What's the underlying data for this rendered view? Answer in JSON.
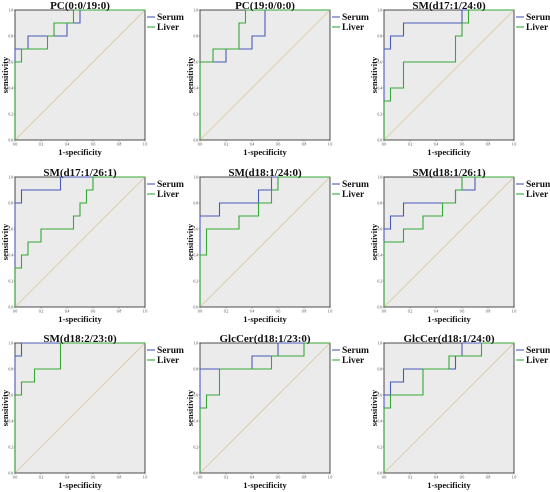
{
  "chart_data": [
    {
      "type": "line",
      "title": "PC(0:0/19:0)",
      "xlabel": "1-specificity",
      "ylabel": "sensitivity",
      "xlim": [
        0,
        1
      ],
      "ylim": [
        0,
        1
      ],
      "tick_labels": [
        "0.0",
        "0.2",
        "0.4",
        "0.6",
        "0.8",
        "1.0"
      ],
      "grid": false,
      "legend_placement": "top-right",
      "reference_line": "diagonal",
      "series": [
        {
          "name": "Serum",
          "color": "#4a5ab8",
          "x": [
            0,
            0,
            0.1,
            0.1,
            0.4,
            0.4,
            0.5,
            0.5,
            0.6,
            0.6,
            1.0
          ],
          "y": [
            0,
            0.7,
            0.7,
            0.8,
            0.8,
            0.9,
            0.9,
            1.0,
            1.0,
            1.0,
            1.0
          ]
        },
        {
          "name": "Liver",
          "color": "#35a835",
          "x": [
            0,
            0,
            0.05,
            0.05,
            0.25,
            0.25,
            0.3,
            0.3,
            0.45,
            0.45,
            1.0
          ],
          "y": [
            0,
            0.6,
            0.6,
            0.7,
            0.7,
            0.8,
            0.8,
            0.9,
            0.9,
            1.0,
            1.0
          ]
        }
      ]
    },
    {
      "type": "line",
      "title": "PC(19:0/0:0)",
      "xlabel": "1-specificity",
      "ylabel": "sensitivity",
      "xlim": [
        0,
        1
      ],
      "ylim": [
        0,
        1
      ],
      "tick_labels": [
        "0.0",
        "0.2",
        "0.4",
        "0.6",
        "0.8",
        "1.0"
      ],
      "grid": false,
      "legend_placement": "top-right",
      "reference_line": "diagonal",
      "series": [
        {
          "name": "Serum",
          "color": "#4a5ab8",
          "x": [
            0,
            0,
            0.2,
            0.2,
            0.4,
            0.4,
            0.5,
            0.5,
            1.0
          ],
          "y": [
            0,
            0.6,
            0.6,
            0.7,
            0.7,
            0.8,
            0.8,
            1.0,
            1.0
          ]
        },
        {
          "name": "Liver",
          "color": "#35a835",
          "x": [
            0,
            0,
            0.1,
            0.1,
            0.3,
            0.3,
            0.35,
            0.35,
            1.0
          ],
          "y": [
            0,
            0.6,
            0.6,
            0.7,
            0.7,
            0.9,
            0.9,
            1.0,
            1.0
          ]
        }
      ]
    },
    {
      "type": "line",
      "title": "SM(d17:1/24:0)",
      "xlabel": "1-specificity",
      "ylabel": "sensitivity",
      "xlim": [
        0,
        1
      ],
      "ylim": [
        0,
        1
      ],
      "tick_labels": [
        "0.0",
        "0.2",
        "0.4",
        "0.6",
        "0.8",
        "1.0"
      ],
      "grid": false,
      "legend_placement": "top-right",
      "reference_line": "diagonal",
      "series": [
        {
          "name": "Serum",
          "color": "#4a5ab8",
          "x": [
            0,
            0,
            0.05,
            0.05,
            0.15,
            0.15,
            0.6,
            0.6,
            1.0
          ],
          "y": [
            0,
            0.7,
            0.7,
            0.8,
            0.8,
            0.9,
            0.9,
            1.0,
            1.0
          ]
        },
        {
          "name": "Liver",
          "color": "#35a835",
          "x": [
            0,
            0,
            0.05,
            0.05,
            0.15,
            0.15,
            0.55,
            0.55,
            0.6,
            0.6,
            0.65,
            0.65,
            1.0
          ],
          "y": [
            0,
            0.3,
            0.3,
            0.4,
            0.4,
            0.6,
            0.6,
            0.8,
            0.8,
            0.9,
            0.9,
            1.0,
            1.0
          ]
        }
      ]
    },
    {
      "type": "line",
      "title": "SM(d17:1/26:1)",
      "xlabel": "1-specificity",
      "ylabel": "sensitivity",
      "xlim": [
        0,
        1
      ],
      "ylim": [
        0,
        1
      ],
      "tick_labels": [
        "0.0",
        "0.2",
        "0.4",
        "0.6",
        "0.8",
        "1.0"
      ],
      "grid": false,
      "legend_placement": "top-right",
      "reference_line": "diagonal",
      "series": [
        {
          "name": "Serum",
          "color": "#4a5ab8",
          "x": [
            0,
            0,
            0.05,
            0.05,
            0.35,
            0.35,
            1.0
          ],
          "y": [
            0,
            0.8,
            0.8,
            0.9,
            0.9,
            1.0,
            1.0
          ]
        },
        {
          "name": "Liver",
          "color": "#35a835",
          "x": [
            0,
            0,
            0.05,
            0.05,
            0.1,
            0.1,
            0.2,
            0.2,
            0.45,
            0.45,
            0.5,
            0.5,
            0.55,
            0.55,
            0.6,
            0.6,
            1.0
          ],
          "y": [
            0,
            0.3,
            0.3,
            0.4,
            0.4,
            0.5,
            0.5,
            0.6,
            0.6,
            0.7,
            0.7,
            0.8,
            0.8,
            0.9,
            0.9,
            1.0,
            1.0
          ]
        }
      ]
    },
    {
      "type": "line",
      "title": "SM(d18:1/24:0)",
      "xlabel": "1-specificity",
      "ylabel": "sensitivity",
      "xlim": [
        0,
        1
      ],
      "ylim": [
        0,
        1
      ],
      "tick_labels": [
        "0.0",
        "0.2",
        "0.4",
        "0.6",
        "0.8",
        "1.0"
      ],
      "grid": false,
      "legend_placement": "top-right",
      "reference_line": "diagonal",
      "series": [
        {
          "name": "Serum",
          "color": "#4a5ab8",
          "x": [
            0,
            0,
            0.15,
            0.15,
            0.45,
            0.45,
            0.55,
            0.55,
            1.0
          ],
          "y": [
            0,
            0.7,
            0.7,
            0.8,
            0.8,
            0.9,
            0.9,
            1.0,
            1.0
          ]
        },
        {
          "name": "Liver",
          "color": "#35a835",
          "x": [
            0,
            0,
            0.05,
            0.05,
            0.3,
            0.3,
            0.45,
            0.45,
            0.55,
            0.55,
            0.6,
            0.6,
            0.7,
            0.7,
            1.0
          ],
          "y": [
            0,
            0.4,
            0.4,
            0.6,
            0.6,
            0.7,
            0.7,
            0.8,
            0.8,
            0.9,
            0.9,
            1.0,
            1.0,
            1.0,
            1.0
          ]
        }
      ]
    },
    {
      "type": "line",
      "title": "SM(d18:1/26:1)",
      "xlabel": "1-specificity",
      "ylabel": "sensitivity",
      "xlim": [
        0,
        1
      ],
      "ylim": [
        0,
        1
      ],
      "tick_labels": [
        "0.0",
        "0.2",
        "0.4",
        "0.6",
        "0.8",
        "1.0"
      ],
      "grid": false,
      "legend_placement": "top-right",
      "reference_line": "diagonal",
      "series": [
        {
          "name": "Serum",
          "color": "#4a5ab8",
          "x": [
            0,
            0,
            0.05,
            0.05,
            0.15,
            0.15,
            0.55,
            0.55,
            0.7,
            0.7,
            1.0
          ],
          "y": [
            0,
            0.6,
            0.6,
            0.7,
            0.7,
            0.8,
            0.8,
            0.9,
            0.9,
            1.0,
            1.0
          ]
        },
        {
          "name": "Liver",
          "color": "#35a835",
          "x": [
            0,
            0,
            0.15,
            0.15,
            0.3,
            0.3,
            0.45,
            0.45,
            0.55,
            0.55,
            0.6,
            0.6,
            0.75,
            0.75,
            1.0
          ],
          "y": [
            0,
            0.5,
            0.5,
            0.6,
            0.6,
            0.7,
            0.7,
            0.8,
            0.8,
            0.9,
            0.9,
            1.0,
            1.0,
            1.0,
            1.0
          ]
        }
      ]
    },
    {
      "type": "line",
      "title": "SM(d18:2/23:0)",
      "xlabel": "1-specificity",
      "ylabel": "sensitivity",
      "xlim": [
        0,
        1
      ],
      "ylim": [
        0,
        1
      ],
      "tick_labels": [
        "0.0",
        "0.2",
        "0.4",
        "0.6",
        "0.8",
        "1.0"
      ],
      "grid": false,
      "legend_placement": "top-right",
      "reference_line": "diagonal",
      "series": [
        {
          "name": "Serum",
          "color": "#4a5ab8",
          "x": [
            0,
            0,
            0.05,
            0.05,
            1.0
          ],
          "y": [
            0,
            0.9,
            0.9,
            1.0,
            1.0
          ]
        },
        {
          "name": "Liver",
          "color": "#35a835",
          "x": [
            0,
            0,
            0.05,
            0.05,
            0.15,
            0.15,
            0.35,
            0.35,
            1.0
          ],
          "y": [
            0,
            0.6,
            0.6,
            0.7,
            0.7,
            0.8,
            0.8,
            1.0,
            1.0
          ]
        }
      ]
    },
    {
      "type": "line",
      "title": "GlcCer(d18:1/23:0)",
      "xlabel": "1-specificity",
      "ylabel": "sensitivity",
      "xlim": [
        0,
        1
      ],
      "ylim": [
        0,
        1
      ],
      "tick_labels": [
        "0.0",
        "0.2",
        "0.4",
        "0.6",
        "0.8",
        "1.0"
      ],
      "grid": false,
      "legend_placement": "top-right",
      "reference_line": "diagonal",
      "series": [
        {
          "name": "Serum",
          "color": "#4a5ab8",
          "x": [
            0,
            0,
            0.1,
            0.1,
            0.4,
            0.4,
            0.6,
            0.6,
            0.8,
            0.8,
            1.0
          ],
          "y": [
            0,
            0.8,
            0.8,
            0.8,
            0.8,
            0.9,
            0.9,
            1.0,
            1.0,
            1.0,
            1.0
          ]
        },
        {
          "name": "Liver",
          "color": "#35a835",
          "x": [
            0,
            0,
            0.05,
            0.05,
            0.15,
            0.15,
            0.55,
            0.55,
            0.8,
            0.8,
            1.0
          ],
          "y": [
            0,
            0.5,
            0.5,
            0.6,
            0.6,
            0.8,
            0.8,
            0.9,
            0.9,
            1.0,
            1.0
          ]
        }
      ]
    },
    {
      "type": "line",
      "title": "GlcCer(d18:1/24:0)",
      "xlabel": "1-specificity",
      "ylabel": "sensitivity",
      "xlim": [
        0,
        1
      ],
      "ylim": [
        0,
        1
      ],
      "tick_labels": [
        "0.0",
        "0.2",
        "0.4",
        "0.6",
        "0.8",
        "1.0"
      ],
      "grid": false,
      "legend_placement": "top-right",
      "reference_line": "diagonal",
      "series": [
        {
          "name": "Serum",
          "color": "#4a5ab8",
          "x": [
            0,
            0,
            0.05,
            0.05,
            0.15,
            0.15,
            0.55,
            0.55,
            0.6,
            0.6,
            1.0
          ],
          "y": [
            0,
            0.6,
            0.6,
            0.7,
            0.7,
            0.8,
            0.8,
            0.9,
            0.9,
            1.0,
            1.0
          ]
        },
        {
          "name": "Liver",
          "color": "#35a835",
          "x": [
            0,
            0,
            0.05,
            0.05,
            0.3,
            0.3,
            0.5,
            0.5,
            0.75,
            0.75,
            1.0
          ],
          "y": [
            0,
            0.5,
            0.5,
            0.6,
            0.6,
            0.8,
            0.8,
            0.9,
            0.9,
            1.0,
            1.0
          ]
        }
      ]
    }
  ]
}
